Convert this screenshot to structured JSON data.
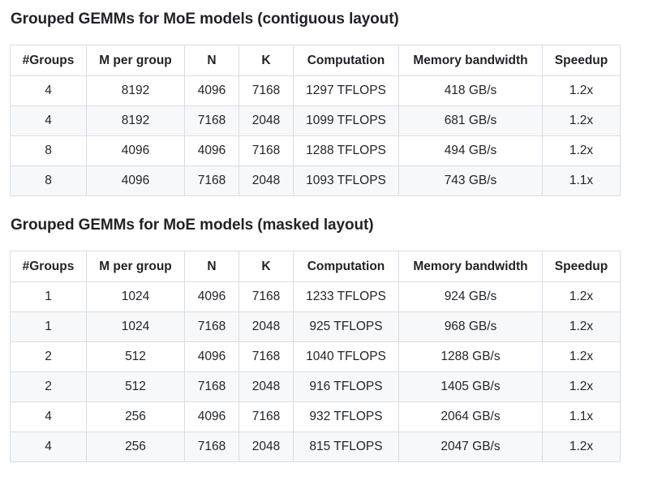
{
  "sections": [
    {
      "title": "Grouped GEMMs for MoE models (contiguous layout)",
      "headers": [
        "#Groups",
        "M per group",
        "N",
        "K",
        "Computation",
        "Memory bandwidth",
        "Speedup"
      ],
      "rows": [
        [
          "4",
          "8192",
          "4096",
          "7168",
          "1297 TFLOPS",
          "418 GB/s",
          "1.2x"
        ],
        [
          "4",
          "8192",
          "7168",
          "2048",
          "1099 TFLOPS",
          "681 GB/s",
          "1.2x"
        ],
        [
          "8",
          "4096",
          "4096",
          "7168",
          "1288 TFLOPS",
          "494 GB/s",
          "1.2x"
        ],
        [
          "8",
          "4096",
          "7168",
          "2048",
          "1093 TFLOPS",
          "743 GB/s",
          "1.1x"
        ]
      ]
    },
    {
      "title": "Grouped GEMMs for MoE models (masked layout)",
      "headers": [
        "#Groups",
        "M per group",
        "N",
        "K",
        "Computation",
        "Memory bandwidth",
        "Speedup"
      ],
      "rows": [
        [
          "1",
          "1024",
          "4096",
          "7168",
          "1233 TFLOPS",
          "924 GB/s",
          "1.2x"
        ],
        [
          "1",
          "1024",
          "7168",
          "2048",
          "925 TFLOPS",
          "968 GB/s",
          "1.2x"
        ],
        [
          "2",
          "512",
          "4096",
          "7168",
          "1040 TFLOPS",
          "1288 GB/s",
          "1.2x"
        ],
        [
          "2",
          "512",
          "7168",
          "2048",
          "916 TFLOPS",
          "1405 GB/s",
          "1.2x"
        ],
        [
          "4",
          "256",
          "4096",
          "7168",
          "932 TFLOPS",
          "2064 GB/s",
          "1.1x"
        ],
        [
          "4",
          "256",
          "7168",
          "2048",
          "815 TFLOPS",
          "2047 GB/s",
          "1.2x"
        ]
      ]
    }
  ]
}
